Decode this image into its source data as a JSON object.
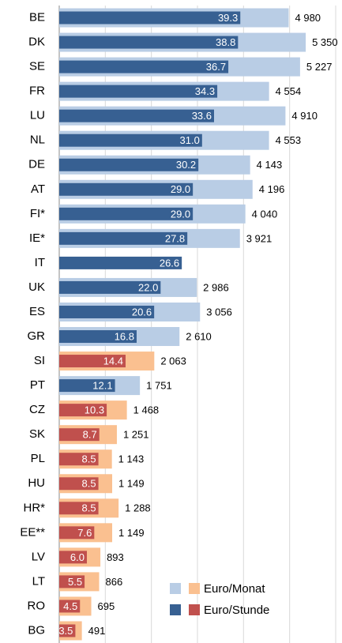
{
  "chart_data": {
    "type": "bar",
    "categories": [
      "BE",
      "DK",
      "SE",
      "FR",
      "LU",
      "NL",
      "DE",
      "AT",
      "FI*",
      "IE*",
      "IT",
      "UK",
      "ES",
      "GR",
      "SI",
      "PT",
      "CZ",
      "SK",
      "PL",
      "HU",
      "HR*",
      "EE**",
      "LV",
      "LT",
      "RO",
      "BG"
    ],
    "series": [
      {
        "name": "Euro/Monat",
        "values": [
          4980,
          5350,
          5227,
          4554,
          4910,
          4553,
          4143,
          4196,
          4040,
          3921,
          null,
          2986,
          3056,
          2610,
          2063,
          1751,
          1468,
          1251,
          1143,
          1149,
          1288,
          1149,
          893,
          866,
          695,
          491
        ],
        "value_labels": [
          "4 980",
          "5 350",
          "5 227",
          "4 554",
          "4 910",
          "4 553",
          "4 143",
          "4 196",
          "4 040",
          "3 921",
          null,
          "2 986",
          "3 056",
          "2 610",
          "2 063",
          "1 751",
          "1 468",
          "1 251",
          "1 143",
          "1 149",
          "1 288",
          "1 149",
          "893",
          "866",
          "695",
          "491"
        ],
        "colors": [
          "#b9cde5",
          "#b9cde5",
          "#b9cde5",
          "#b9cde5",
          "#b9cde5",
          "#b9cde5",
          "#b9cde5",
          "#b9cde5",
          "#b9cde5",
          "#b9cde5",
          "#b9cde5",
          "#b9cde5",
          "#b9cde5",
          "#b9cde5",
          "#fac090",
          "#b9cde5",
          "#fac090",
          "#fac090",
          "#fac090",
          "#fac090",
          "#fac090",
          "#fac090",
          "#fac090",
          "#fac090",
          "#fac090",
          "#fac090"
        ]
      },
      {
        "name": "Euro/Stunde",
        "axis": "x2",
        "values": [
          39.3,
          38.8,
          36.7,
          34.3,
          33.6,
          31.0,
          30.2,
          29.0,
          29.0,
          27.8,
          26.6,
          22.0,
          20.6,
          16.8,
          14.4,
          12.1,
          10.3,
          8.7,
          8.5,
          8.5,
          8.5,
          7.6,
          6.0,
          5.5,
          4.5,
          3.5
        ],
        "value_labels": [
          "39.3",
          "38.8",
          "36.7",
          "34.3",
          "33.6",
          "31.0",
          "30.2",
          "29.0",
          "29.0",
          "27.8",
          "26.6",
          "22.0",
          "20.6",
          "16.8",
          "14.4",
          "12.1",
          "10.3",
          "8.7",
          "8.5",
          "8.5",
          "8.5",
          "7.6",
          "6.0",
          "5.5",
          "4.5",
          "3.5"
        ],
        "colors": [
          "#376092",
          "#376092",
          "#376092",
          "#376092",
          "#376092",
          "#376092",
          "#376092",
          "#376092",
          "#376092",
          "#376092",
          "#376092",
          "#376092",
          "#376092",
          "#376092",
          "#c0504d",
          "#376092",
          "#c0504d",
          "#c0504d",
          "#c0504d",
          "#c0504d",
          "#c0504d",
          "#c0504d",
          "#c0504d",
          "#c0504d",
          "#c0504d",
          "#c0504d"
        ]
      }
    ],
    "xlim": [
      0,
      6000
    ],
    "xticks": [
      0,
      1000,
      2000,
      3000,
      4000,
      5000,
      6000
    ],
    "x2lim": [
      0,
      60
    ],
    "grid": true,
    "legend": "lower right"
  }
}
